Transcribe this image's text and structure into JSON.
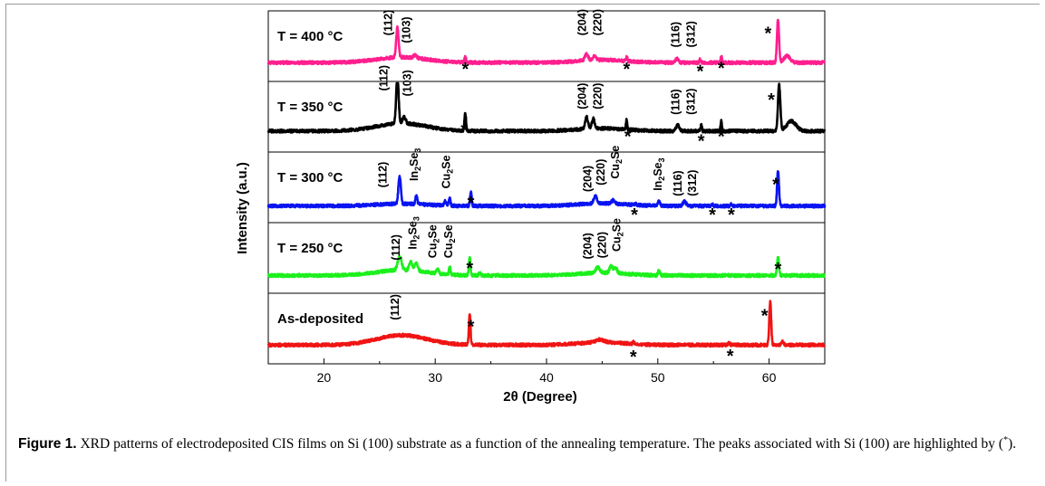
{
  "figure": {
    "label": "Figure 1.",
    "caption_main": " XRD patterns of electrodeposited CIS films on Si (100) substrate as a function of the annealing temperature. The peaks associated with Si (100) are highlighted by (",
    "caption_star": "*",
    "caption_end": ")."
  },
  "chart_data": {
    "type": "line",
    "xlabel": "2θ (Degree)",
    "ylabel": "Intensity (a.u.)",
    "xlim": [
      15,
      65
    ],
    "xticks": [
      20,
      30,
      40,
      50,
      60
    ],
    "series": [
      {
        "name": "T = 400 °C",
        "color": "#ff1f8e",
        "baseline": 0.9,
        "hump": 0.5,
        "peaks": [
          [
            26.6,
            2.8,
            0.15
          ],
          [
            28.2,
            0.25,
            0.2
          ],
          [
            32.7,
            0.5,
            0.1
          ],
          [
            43.6,
            0.6,
            0.2
          ],
          [
            44.3,
            0.4,
            0.2
          ],
          [
            47.2,
            0.45,
            0.08
          ],
          [
            51.7,
            0.35,
            0.2
          ],
          [
            53.8,
            0.3,
            0.08
          ],
          [
            55.7,
            0.6,
            0.08
          ],
          [
            60.8,
            4.0,
            0.13
          ],
          [
            61.6,
            0.6,
            0.4
          ]
        ],
        "labels": [
          {
            "text": "(112)",
            "x": 25.8,
            "y": 3.4
          },
          {
            "text": "(103)",
            "x": 27.4,
            "y": 2.7
          },
          {
            "text": "*",
            "x": 32.7,
            "y": 0.9
          },
          {
            "text": "(204)",
            "x": 43.2,
            "y": 3.4
          },
          {
            "text": "(220)",
            "x": 44.6,
            "y": 3.4
          },
          {
            "text": "*",
            "x": 47.2,
            "y": 0.9
          },
          {
            "text": "(116)",
            "x": 51.6,
            "y": 2.3
          },
          {
            "text": "(312)",
            "x": 53.0,
            "y": 2.3
          },
          {
            "text": "*",
            "x": 53.8,
            "y": 0.7
          },
          {
            "text": "*",
            "x": 55.7,
            "y": 1.0
          },
          {
            "text": "*",
            "x": 59.9,
            "y": 4.2
          }
        ]
      },
      {
        "name": "T = 350 °C",
        "color": "#000000",
        "baseline": 1.1,
        "hump": 0.7,
        "peaks": [
          [
            26.6,
            4.5,
            0.15
          ],
          [
            27.2,
            0.6,
            0.2
          ],
          [
            32.7,
            1.6,
            0.1
          ],
          [
            43.6,
            1.1,
            0.18
          ],
          [
            44.2,
            0.9,
            0.18
          ],
          [
            47.2,
            0.9,
            0.08
          ],
          [
            51.8,
            0.6,
            0.2
          ],
          [
            53.9,
            0.6,
            0.08
          ],
          [
            55.7,
            1.0,
            0.08
          ],
          [
            60.9,
            4.2,
            0.15
          ],
          [
            62.0,
            0.9,
            0.6
          ]
        ],
        "labels": [
          {
            "text": "(112)",
            "x": 25.4,
            "y": 4.8
          },
          {
            "text": "(103)",
            "x": 27.5,
            "y": 4.3
          },
          {
            "text": "*",
            "x": 32.6,
            "y": 1.8
          },
          {
            "text": "(204)",
            "x": 43.2,
            "y": 3.1
          },
          {
            "text": "(220)",
            "x": 44.6,
            "y": 3.1
          },
          {
            "text": "*",
            "x": 47.3,
            "y": 1.2
          },
          {
            "text": "(116)",
            "x": 51.6,
            "y": 2.6
          },
          {
            "text": "(312)",
            "x": 53.0,
            "y": 2.6
          },
          {
            "text": "*",
            "x": 53.9,
            "y": 0.8
          },
          {
            "text": "*",
            "x": 55.7,
            "y": 1.2
          },
          {
            "text": "*",
            "x": 60.2,
            "y": 4.6
          }
        ]
      },
      {
        "name": "T = 300 °C",
        "color": "#0a14f0",
        "baseline": 0.7,
        "hump": 0.2,
        "peaks": [
          [
            26.8,
            2.6,
            0.15
          ],
          [
            28.3,
            0.8,
            0.12
          ],
          [
            30.9,
            0.4,
            0.15
          ],
          [
            31.3,
            0.7,
            0.1
          ],
          [
            33.2,
            1.3,
            0.1
          ],
          [
            44.4,
            0.7,
            0.2
          ],
          [
            46.0,
            0.3,
            0.2
          ],
          [
            48.0,
            0.15,
            0.1
          ],
          [
            50.1,
            0.4,
            0.15
          ],
          [
            52.4,
            0.4,
            0.2
          ],
          [
            54.9,
            0.15,
            0.1
          ],
          [
            56.6,
            0.15,
            0.1
          ],
          [
            60.8,
            3.2,
            0.12
          ]
        ],
        "labels": [
          {
            "text": "(112)",
            "x": 25.3,
            "y": 2.4
          },
          {
            "text": "In2Se3",
            "x": 28.1,
            "y": 3.0
          },
          {
            "text": "Cu2Se",
            "x": 31.0,
            "y": 2.3
          },
          {
            "text": "*",
            "x": 33.2,
            "y": 1.6
          },
          {
            "text": "(204)",
            "x": 43.7,
            "y": 2.0
          },
          {
            "text": "(220)",
            "x": 44.9,
            "y": 2.6
          },
          {
            "text": "Cu2Se",
            "x": 46.2,
            "y": 3.2
          },
          {
            "text": "*",
            "x": 47.9,
            "y": 0.5
          },
          {
            "text": "In2Se3",
            "x": 50.0,
            "y": 2.1
          },
          {
            "text": "(116)",
            "x": 51.8,
            "y": 1.6
          },
          {
            "text": "(312)",
            "x": 53.1,
            "y": 1.6
          },
          {
            "text": "*",
            "x": 54.9,
            "y": 0.5
          },
          {
            "text": "*",
            "x": 56.6,
            "y": 0.5
          },
          {
            "text": "*",
            "x": 60.6,
            "y": 3.3
          }
        ]
      },
      {
        "name": "T = 250 °C",
        "color": "#1cf01c",
        "baseline": 0.8,
        "hump": 0.5,
        "peaks": [
          [
            26.8,
            1.2,
            0.25
          ],
          [
            27.8,
            0.8,
            0.2
          ],
          [
            28.3,
            0.7,
            0.2
          ],
          [
            30.2,
            0.4,
            0.15
          ],
          [
            31.3,
            0.7,
            0.1
          ],
          [
            33.1,
            1.7,
            0.1
          ],
          [
            34.0,
            0.3,
            0.1
          ],
          [
            44.6,
            0.5,
            0.25
          ],
          [
            45.8,
            0.6,
            0.2
          ],
          [
            46.2,
            0.5,
            0.2
          ],
          [
            50.1,
            0.4,
            0.12
          ],
          [
            60.8,
            1.7,
            0.12
          ]
        ],
        "labels": [
          {
            "text": "(112)",
            "x": 26.5,
            "y": 2.2
          },
          {
            "text": "In2Se3",
            "x": 28.0,
            "y": 3.2
          },
          {
            "text": "Cu2Se",
            "x": 29.8,
            "y": 2.4
          },
          {
            "text": "Cu2Se",
            "x": 31.2,
            "y": 2.4
          },
          {
            "text": "*",
            "x": 33.1,
            "y": 2.1
          },
          {
            "text": "(204)",
            "x": 43.7,
            "y": 2.3
          },
          {
            "text": "(220)",
            "x": 45.0,
            "y": 2.4
          },
          {
            "text": "Cu2Se",
            "x": 46.3,
            "y": 3.0
          },
          {
            "text": "*",
            "x": 60.8,
            "y": 2.0
          }
        ]
      },
      {
        "name": "As-deposited",
        "color": "#f01414",
        "baseline": 0.9,
        "hump": 0.9,
        "peaks": [
          [
            33.1,
            2.8,
            0.1
          ],
          [
            44.8,
            0.25,
            0.5
          ],
          [
            47.8,
            0.15,
            0.1
          ],
          [
            56.4,
            0.25,
            0.1
          ],
          [
            60.1,
            4.0,
            0.12
          ],
          [
            61.2,
            0.3,
            0.15
          ]
        ],
        "labels": [
          {
            "text": "(112)",
            "x": 26.4,
            "y": 3.2
          },
          {
            "text": "*",
            "x": 33.2,
            "y": 3.2
          },
          {
            "text": "*",
            "x": 47.8,
            "y": 0.4
          },
          {
            "text": "*",
            "x": 56.5,
            "y": 0.5
          },
          {
            "text": "*",
            "x": 59.6,
            "y": 4.2
          }
        ]
      }
    ]
  }
}
